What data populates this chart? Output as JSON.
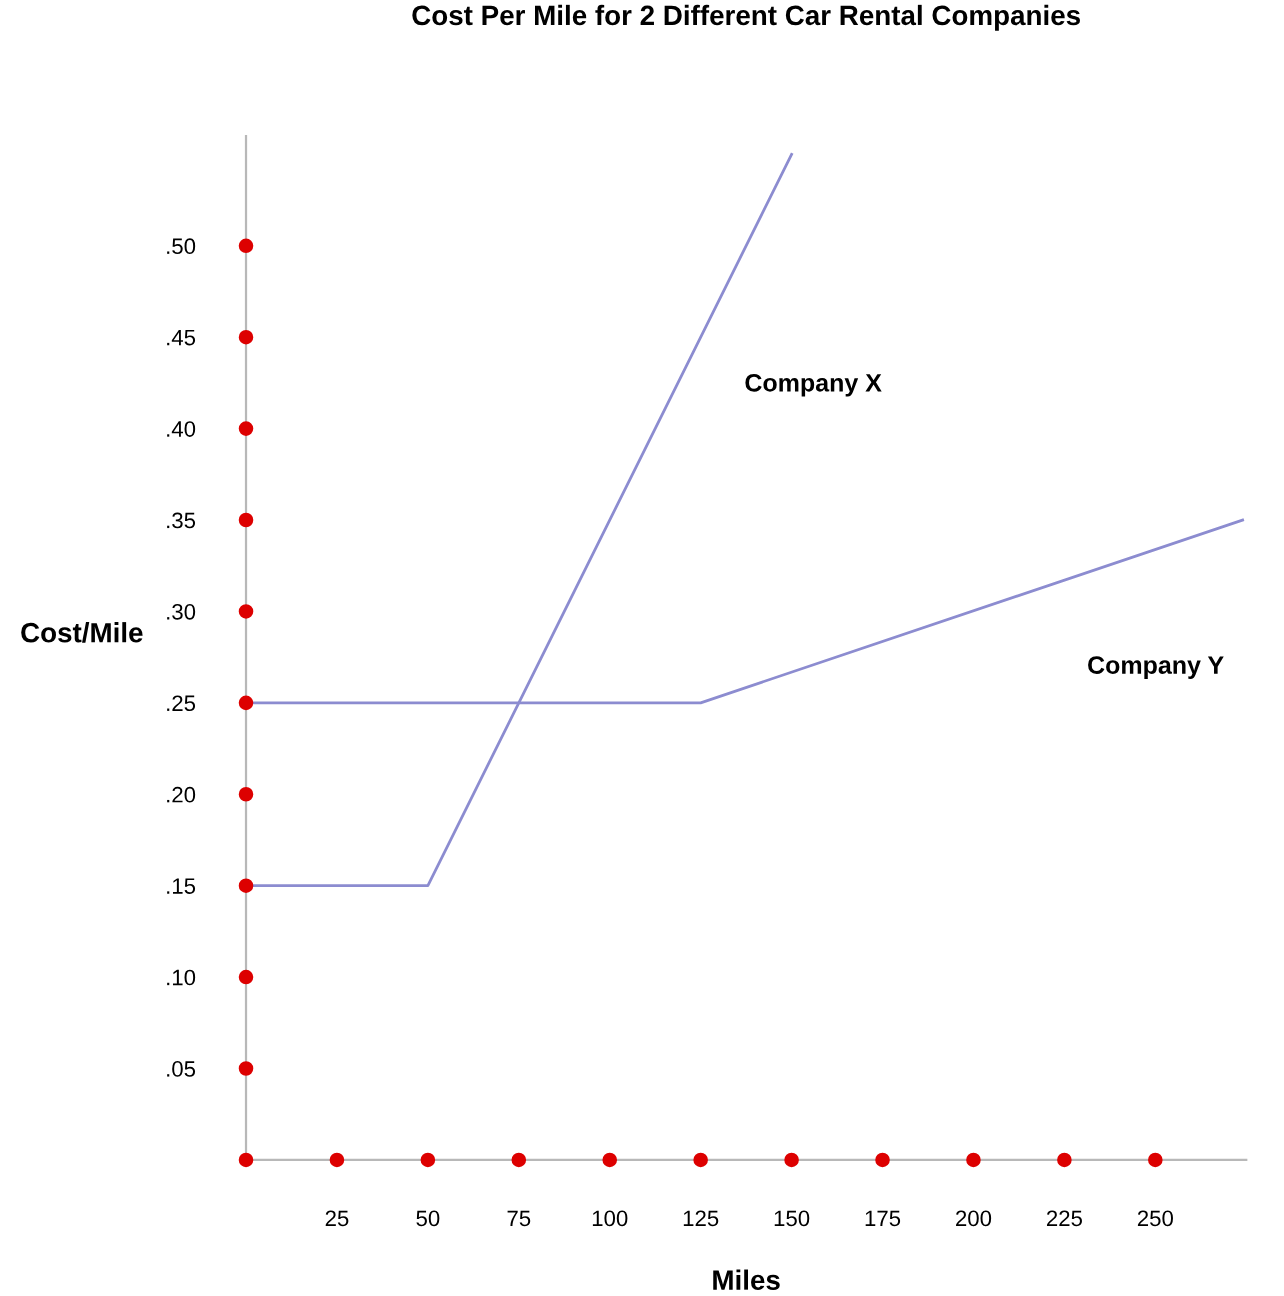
{
  "chart_data": {
    "type": "line",
    "title": "Cost Per Mile for 2 Different Car Rental Companies",
    "xlabel": "Miles",
    "ylabel": "Cost/Mile",
    "xlim": [
      0,
      275
    ],
    "ylim": [
      0,
      0.56
    ],
    "xticks": [
      25,
      50,
      75,
      100,
      125,
      150,
      175,
      200,
      225,
      250
    ],
    "yticks": [
      {
        "value": 0.05,
        "label": ".05"
      },
      {
        "value": 0.1,
        "label": ".10"
      },
      {
        "value": 0.15,
        "label": ".15"
      },
      {
        "value": 0.2,
        "label": ".20"
      },
      {
        "value": 0.25,
        "label": ".25"
      },
      {
        "value": 0.3,
        "label": ".30"
      },
      {
        "value": 0.35,
        "label": ".35"
      },
      {
        "value": 0.4,
        "label": ".40"
      },
      {
        "value": 0.45,
        "label": ".45"
      },
      {
        "value": 0.5,
        "label": ".50"
      }
    ],
    "grid": false,
    "series": [
      {
        "color": "#8c8cd0",
        "x": [
          0,
          50,
          150
        ],
        "values": [
          0.15,
          0.15,
          0.55
        ]
      },
      {
        "color": "#8c8cd0",
        "x": [
          0,
          125,
          274
        ],
        "values": [
          0.25,
          0.25,
          0.35
        ]
      },
      {
        "type": "scatter",
        "color": "#dd0000",
        "marker": "circle",
        "x": [
          0,
          25,
          50,
          75,
          100,
          125,
          150,
          175,
          200,
          225,
          250
        ],
        "values": [
          0,
          0,
          0,
          0,
          0,
          0,
          0,
          0,
          0,
          0,
          0
        ]
      },
      {
        "type": "scatter",
        "color": "#dd0000",
        "marker": "circle",
        "x": [
          0,
          0,
          0,
          0,
          0,
          0,
          0,
          0,
          0,
          0
        ],
        "values": [
          0.05,
          0.1,
          0.15,
          0.2,
          0.25,
          0.3,
          0.35,
          0.4,
          0.45,
          0.5
        ]
      }
    ],
    "annotations": [
      "Company X",
      "Company Y"
    ]
  }
}
